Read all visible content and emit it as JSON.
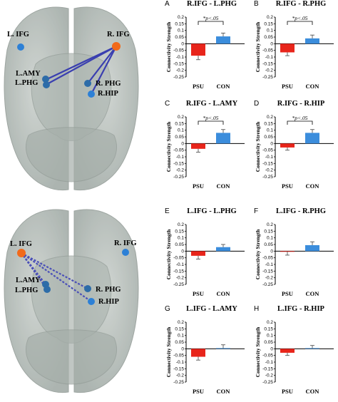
{
  "colors": {
    "psu": "#e8251b",
    "con": "#3b8ddc",
    "solid_line": "#3a3fb0",
    "dashed_line": "#4a4fb8",
    "node_orange": "#f26a1b",
    "node_blue": "#2d80d6"
  },
  "brain_top": {
    "labels": {
      "l_ifg": "L. IFG",
      "r_ifg": "R. IFG",
      "l_amy": "L.AMY",
      "l_phg": "L.PHG",
      "r_phg": "R. PHG",
      "r_hip": "R.HIP"
    }
  },
  "brain_bottom": {
    "labels": {
      "l_ifg": "L. IFG",
      "r_ifg": "R. IFG",
      "l_amy": "L.AMY",
      "l_phg": "L.PHG",
      "r_phg": "R. PHG",
      "r_hip": "R.HIP"
    }
  },
  "ylabel": "Connectivity Strength",
  "chart_data": [
    {
      "letter": "A",
      "title": "R.IFG - L.PHG",
      "type": "bar",
      "categories": [
        "PSU",
        "CON"
      ],
      "values": [
        -0.09,
        0.055
      ],
      "errors": [
        0.03,
        0.025
      ],
      "ylim": [
        -0.25,
        0.2
      ],
      "ticks": [
        "0.2",
        "0.15",
        "0.1",
        "0.05",
        "0",
        "-0.05",
        "-0.1",
        "-0.15",
        "-0.2",
        "-0.25"
      ],
      "sig": "*p<.05"
    },
    {
      "letter": "B",
      "title": "R.IFG - R.PHG",
      "type": "bar",
      "categories": [
        "PSU",
        "CON"
      ],
      "values": [
        -0.065,
        0.04
      ],
      "errors": [
        0.025,
        0.025
      ],
      "ylim": [
        -0.25,
        0.2
      ],
      "ticks": [
        "0.2",
        "0.15",
        "0.1",
        "0.05",
        "0",
        "-0.05",
        "-0.1",
        "-0.15",
        "-0.2",
        "-0.25"
      ],
      "sig": "*p<.05"
    },
    {
      "letter": "C",
      "title": "R.IFG - L.AMY",
      "type": "bar",
      "categories": [
        "PSU",
        "CON"
      ],
      "values": [
        -0.04,
        0.08
      ],
      "errors": [
        0.025,
        0.025
      ],
      "ylim": [
        -0.25,
        0.2
      ],
      "ticks": [
        "0.2",
        "0.15",
        "0.1",
        "0.05",
        "0",
        "-0.05",
        "-0.1",
        "-0.15",
        "-0.2",
        "-0.25"
      ],
      "sig": "*p<.05"
    },
    {
      "letter": "D",
      "title": "R.IFG - R.HIP",
      "type": "bar",
      "categories": [
        "PSU",
        "CON"
      ],
      "values": [
        -0.03,
        0.08
      ],
      "errors": [
        0.02,
        0.025
      ],
      "ylim": [
        -0.25,
        0.2
      ],
      "ticks": [
        "0.2",
        "0.15",
        "0.1",
        "0.05",
        "0",
        "-0.05",
        "-0.1",
        "-0.15",
        "-0.2",
        "-0.25"
      ],
      "sig": "*p<.05"
    },
    {
      "letter": "E",
      "title": "L.IFG - L.PHG",
      "type": "bar",
      "categories": [
        "PSU",
        "CON"
      ],
      "values": [
        -0.035,
        0.03
      ],
      "errors": [
        0.025,
        0.02
      ],
      "ylim": [
        -0.25,
        0.2
      ],
      "ticks": [
        "0.2",
        "0.15",
        "0.1",
        "0.05",
        "0",
        "-0.05",
        "-0.1",
        "-0.15",
        "-0.2",
        "-0.25"
      ],
      "sig": ""
    },
    {
      "letter": "F",
      "title": "L.IFG - R.PHG",
      "type": "bar",
      "categories": [
        "PSU",
        "CON"
      ],
      "values": [
        -0.005,
        0.045
      ],
      "errors": [
        0.025,
        0.025
      ],
      "ylim": [
        -0.25,
        0.2
      ],
      "ticks": [
        "0.2",
        "0.15",
        "0.1",
        "0.05",
        "0",
        "-0.05",
        "-0.1",
        "-0.15",
        "-0.2",
        "-0.25"
      ],
      "sig": ""
    },
    {
      "letter": "G",
      "title": "L.IFG - L.AMY",
      "type": "bar",
      "categories": [
        "PSU",
        "CON"
      ],
      "values": [
        -0.06,
        0.005
      ],
      "errors": [
        0.025,
        0.025
      ],
      "ylim": [
        -0.25,
        0.2
      ],
      "ticks": [
        "0.2",
        "0.15",
        "0.1",
        "0.05",
        "0",
        "-0.05",
        "-0.1",
        "-0.15",
        "-0.2",
        "-0.25"
      ],
      "sig": ""
    },
    {
      "letter": "H",
      "title": "L.IFG - R.HIP",
      "type": "bar",
      "categories": [
        "PSU",
        "CON"
      ],
      "values": [
        -0.03,
        0.005
      ],
      "errors": [
        0.02,
        0.02
      ],
      "ylim": [
        -0.25,
        0.2
      ],
      "ticks": [
        "0.2",
        "0.15",
        "0.1",
        "0.05",
        "0",
        "-0.05",
        "-0.1",
        "-0.15",
        "-0.2",
        "-0.25"
      ],
      "sig": ""
    }
  ]
}
